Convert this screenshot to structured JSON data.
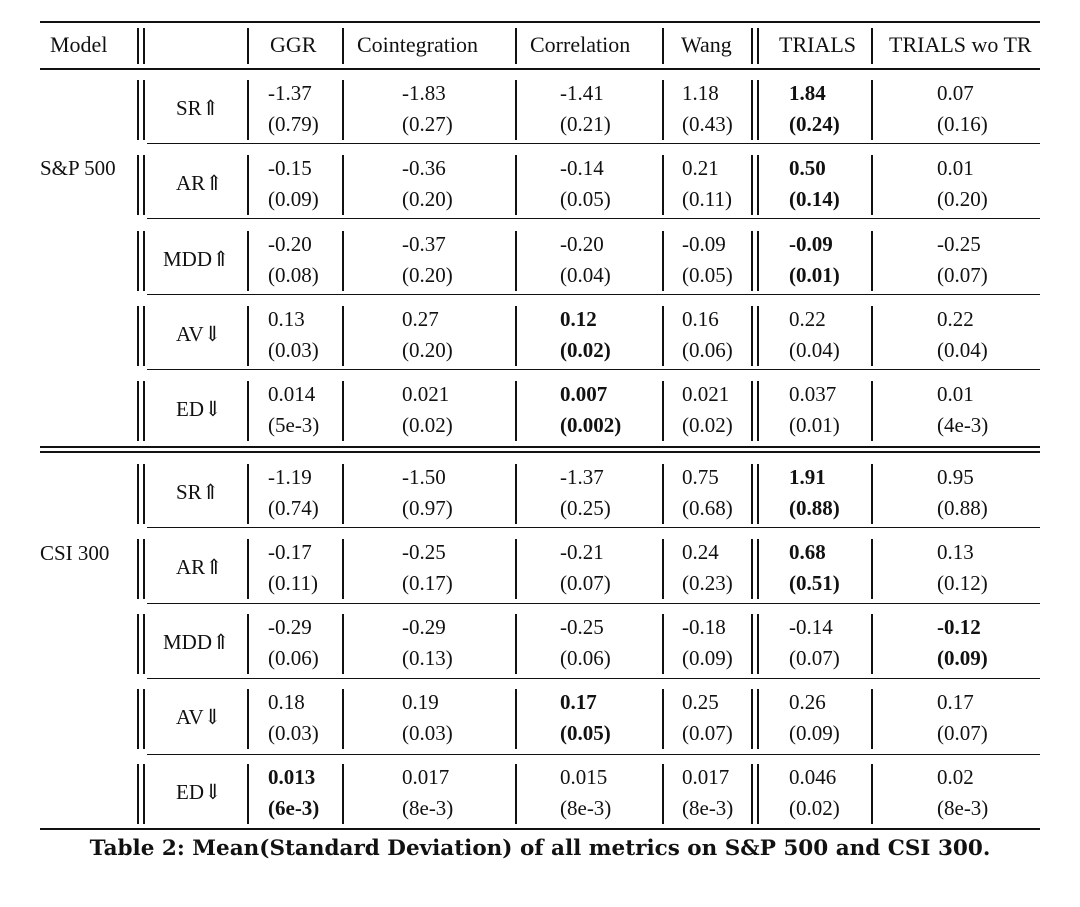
{
  "table": {
    "header": {
      "model": "Model",
      "columns": [
        "GGR",
        "Cointegration",
        "Correlation",
        "Wang",
        "TRIALS",
        "TRIALS wo TR"
      ]
    },
    "groups": [
      {
        "name": "S&P 500",
        "rows": [
          {
            "metric": "SR⇑",
            "cells": [
              {
                "mean": "-1.37",
                "sd": "(0.79)",
                "bold": false
              },
              {
                "mean": "-1.83",
                "sd": "(0.27)",
                "bold": false
              },
              {
                "mean": "-1.41",
                "sd": "(0.21)",
                "bold": false
              },
              {
                "mean": "1.18",
                "sd": "(0.43)",
                "bold": false
              },
              {
                "mean": "1.84",
                "sd": "(0.24)",
                "bold": true
              },
              {
                "mean": "0.07",
                "sd": "(0.16)",
                "bold": false
              }
            ]
          },
          {
            "metric": "AR⇑",
            "cells": [
              {
                "mean": "-0.15",
                "sd": "(0.09)",
                "bold": false
              },
              {
                "mean": "-0.36",
                "sd": "(0.20)",
                "bold": false
              },
              {
                "mean": "-0.14",
                "sd": "(0.05)",
                "bold": false
              },
              {
                "mean": "0.21",
                "sd": "(0.11)",
                "bold": false
              },
              {
                "mean": "0.50",
                "sd": "(0.14)",
                "bold": true
              },
              {
                "mean": "0.01",
                "sd": "(0.20)",
                "bold": false
              }
            ]
          },
          {
            "metric": "MDD⇑",
            "cells": [
              {
                "mean": "-0.20",
                "sd": "(0.08)",
                "bold": false
              },
              {
                "mean": "-0.37",
                "sd": "(0.20)",
                "bold": false
              },
              {
                "mean": "-0.20",
                "sd": "(0.04)",
                "bold": false
              },
              {
                "mean": "-0.09",
                "sd": "(0.05)",
                "bold": false
              },
              {
                "mean": "-0.09",
                "sd": "(0.01)",
                "bold": true
              },
              {
                "mean": "-0.25",
                "sd": "(0.07)",
                "bold": false
              }
            ]
          },
          {
            "metric": "AV⇓",
            "cells": [
              {
                "mean": "0.13",
                "sd": "(0.03)",
                "bold": false
              },
              {
                "mean": "0.27",
                "sd": "(0.20)",
                "bold": false
              },
              {
                "mean": "0.12",
                "sd": "(0.02)",
                "bold": true
              },
              {
                "mean": "0.16",
                "sd": "(0.06)",
                "bold": false
              },
              {
                "mean": "0.22",
                "sd": "(0.04)",
                "bold": false
              },
              {
                "mean": "0.22",
                "sd": "(0.04)",
                "bold": false
              }
            ]
          },
          {
            "metric": "ED⇓",
            "cells": [
              {
                "mean": "0.014",
                "sd": "(5e-3)",
                "bold": false
              },
              {
                "mean": "0.021",
                "sd": "(0.02)",
                "bold": false
              },
              {
                "mean": "0.007",
                "sd": "(0.002)",
                "bold": true
              },
              {
                "mean": "0.021",
                "sd": "(0.02)",
                "bold": false
              },
              {
                "mean": "0.037",
                "sd": "(0.01)",
                "bold": false
              },
              {
                "mean": "0.01",
                "sd": "(4e-3)",
                "bold": false
              }
            ]
          }
        ]
      },
      {
        "name": "CSI 300",
        "rows": [
          {
            "metric": "SR⇑",
            "cells": [
              {
                "mean": "-1.19",
                "sd": "(0.74)",
                "bold": false
              },
              {
                "mean": "-1.50",
                "sd": "(0.97)",
                "bold": false
              },
              {
                "mean": "-1.37",
                "sd": "(0.25)",
                "bold": false
              },
              {
                "mean": "0.75",
                "sd": "(0.68)",
                "bold": false
              },
              {
                "mean": "1.91",
                "sd": "(0.88)",
                "bold": true
              },
              {
                "mean": "0.95",
                "sd": "(0.88)",
                "bold": false
              }
            ]
          },
          {
            "metric": "AR⇑",
            "cells": [
              {
                "mean": "-0.17",
                "sd": "(0.11)",
                "bold": false
              },
              {
                "mean": "-0.25",
                "sd": "(0.17)",
                "bold": false
              },
              {
                "mean": "-0.21",
                "sd": "(0.07)",
                "bold": false
              },
              {
                "mean": "0.24",
                "sd": "(0.23)",
                "bold": false
              },
              {
                "mean": "0.68",
                "sd": "(0.51)",
                "bold": true
              },
              {
                "mean": "0.13",
                "sd": "(0.12)",
                "bold": false
              }
            ]
          },
          {
            "metric": "MDD⇑",
            "cells": [
              {
                "mean": "-0.29",
                "sd": "(0.06)",
                "bold": false
              },
              {
                "mean": "-0.29",
                "sd": "(0.13)",
                "bold": false
              },
              {
                "mean": "-0.25",
                "sd": "(0.06)",
                "bold": false
              },
              {
                "mean": "-0.18",
                "sd": "(0.09)",
                "bold": false
              },
              {
                "mean": "-0.14",
                "sd": "(0.07)",
                "bold": false
              },
              {
                "mean": "-0.12",
                "sd": "(0.09)",
                "bold": true
              }
            ]
          },
          {
            "metric": "AV⇓",
            "cells": [
              {
                "mean": "0.18",
                "sd": "(0.03)",
                "bold": false
              },
              {
                "mean": "0.19",
                "sd": "(0.03)",
                "bold": false
              },
              {
                "mean": "0.17",
                "sd": "(0.05)",
                "bold": true
              },
              {
                "mean": "0.25",
                "sd": "(0.07)",
                "bold": false
              },
              {
                "mean": "0.26",
                "sd": "(0.09)",
                "bold": false
              },
              {
                "mean": "0.17",
                "sd": "(0.07)",
                "bold": false
              }
            ]
          },
          {
            "metric": "ED⇓",
            "cells": [
              {
                "mean": "0.013",
                "sd": "(6e-3)",
                "bold": true
              },
              {
                "mean": "0.017",
                "sd": "(8e-3)",
                "bold": false
              },
              {
                "mean": "0.015",
                "sd": "(8e-3)",
                "bold": false
              },
              {
                "mean": "0.017",
                "sd": "(8e-3)",
                "bold": false
              },
              {
                "mean": "0.046",
                "sd": "(0.02)",
                "bold": false
              },
              {
                "mean": "0.02",
                "sd": "(8e-3)",
                "bold": false
              }
            ]
          }
        ]
      }
    ],
    "caption": "Table 2: Mean(Standard Deviation) of all metrics on S&P 500 and CSI 300."
  }
}
